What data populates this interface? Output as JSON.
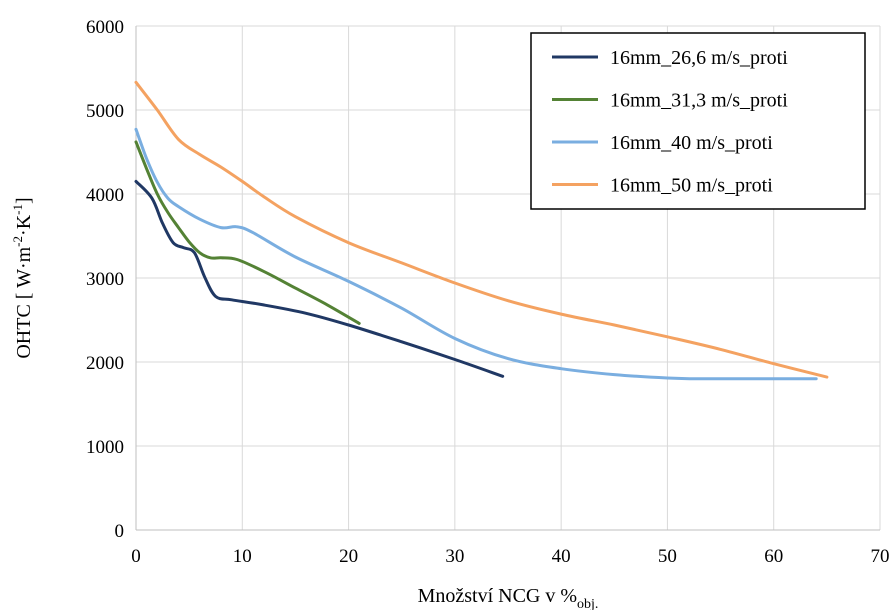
{
  "chart_data": {
    "type": "line",
    "xlabel": "Množství NCG v %",
    "xlabel_subscript": "obj.",
    "ylabel_parts": [
      "OHTC [ W·m",
      "-2",
      "·K",
      "-1",
      "]"
    ],
    "xlim": [
      0,
      70
    ],
    "ylim": [
      0,
      6000
    ],
    "x_ticks": [
      0,
      10,
      20,
      30,
      40,
      50,
      60,
      70
    ],
    "y_ticks": [
      0,
      1000,
      2000,
      3000,
      4000,
      5000,
      6000
    ],
    "grid": true,
    "legend_position": "top-right",
    "series": [
      {
        "name": "16mm_26,6 m/s_proti",
        "color": "#203864",
        "x": [
          0,
          1.5,
          2.5,
          3.5,
          4.5,
          5.5,
          6.5,
          7.5,
          9,
          12,
          16,
          20,
          25,
          30,
          34.5
        ],
        "y": [
          4150,
          3950,
          3650,
          3420,
          3360,
          3300,
          3000,
          2780,
          2740,
          2680,
          2580,
          2440,
          2240,
          2030,
          1830
        ]
      },
      {
        "name": "16mm_31,3 m/s_proti",
        "color": "#548235",
        "x": [
          0,
          1,
          2,
          3,
          4,
          5,
          6,
          7,
          8,
          9.5,
          12,
          15,
          18,
          21
        ],
        "y": [
          4620,
          4300,
          4000,
          3780,
          3600,
          3430,
          3300,
          3240,
          3240,
          3220,
          3080,
          2880,
          2680,
          2460
        ]
      },
      {
        "name": "16mm_40 m/s_proti",
        "color": "#7aaee0",
        "x": [
          0,
          1,
          2,
          3,
          4,
          6,
          8,
          9.5,
          11,
          15,
          20,
          25,
          30,
          35,
          40,
          45,
          50,
          53,
          58,
          64
        ],
        "y": [
          4770,
          4420,
          4140,
          3950,
          3850,
          3700,
          3600,
          3610,
          3540,
          3250,
          2960,
          2640,
          2280,
          2040,
          1920,
          1850,
          1810,
          1800,
          1800,
          1800
        ]
      },
      {
        "name": "16mm_50 m/s_proti",
        "color": "#f4a261",
        "x": [
          0,
          2,
          4,
          6,
          8,
          10,
          12,
          15,
          20,
          25,
          30,
          35,
          40,
          45,
          50,
          55,
          60,
          65
        ],
        "y": [
          5330,
          5000,
          4650,
          4470,
          4320,
          4150,
          3970,
          3730,
          3420,
          3180,
          2940,
          2730,
          2570,
          2440,
          2300,
          2150,
          1980,
          1820
        ]
      }
    ]
  }
}
